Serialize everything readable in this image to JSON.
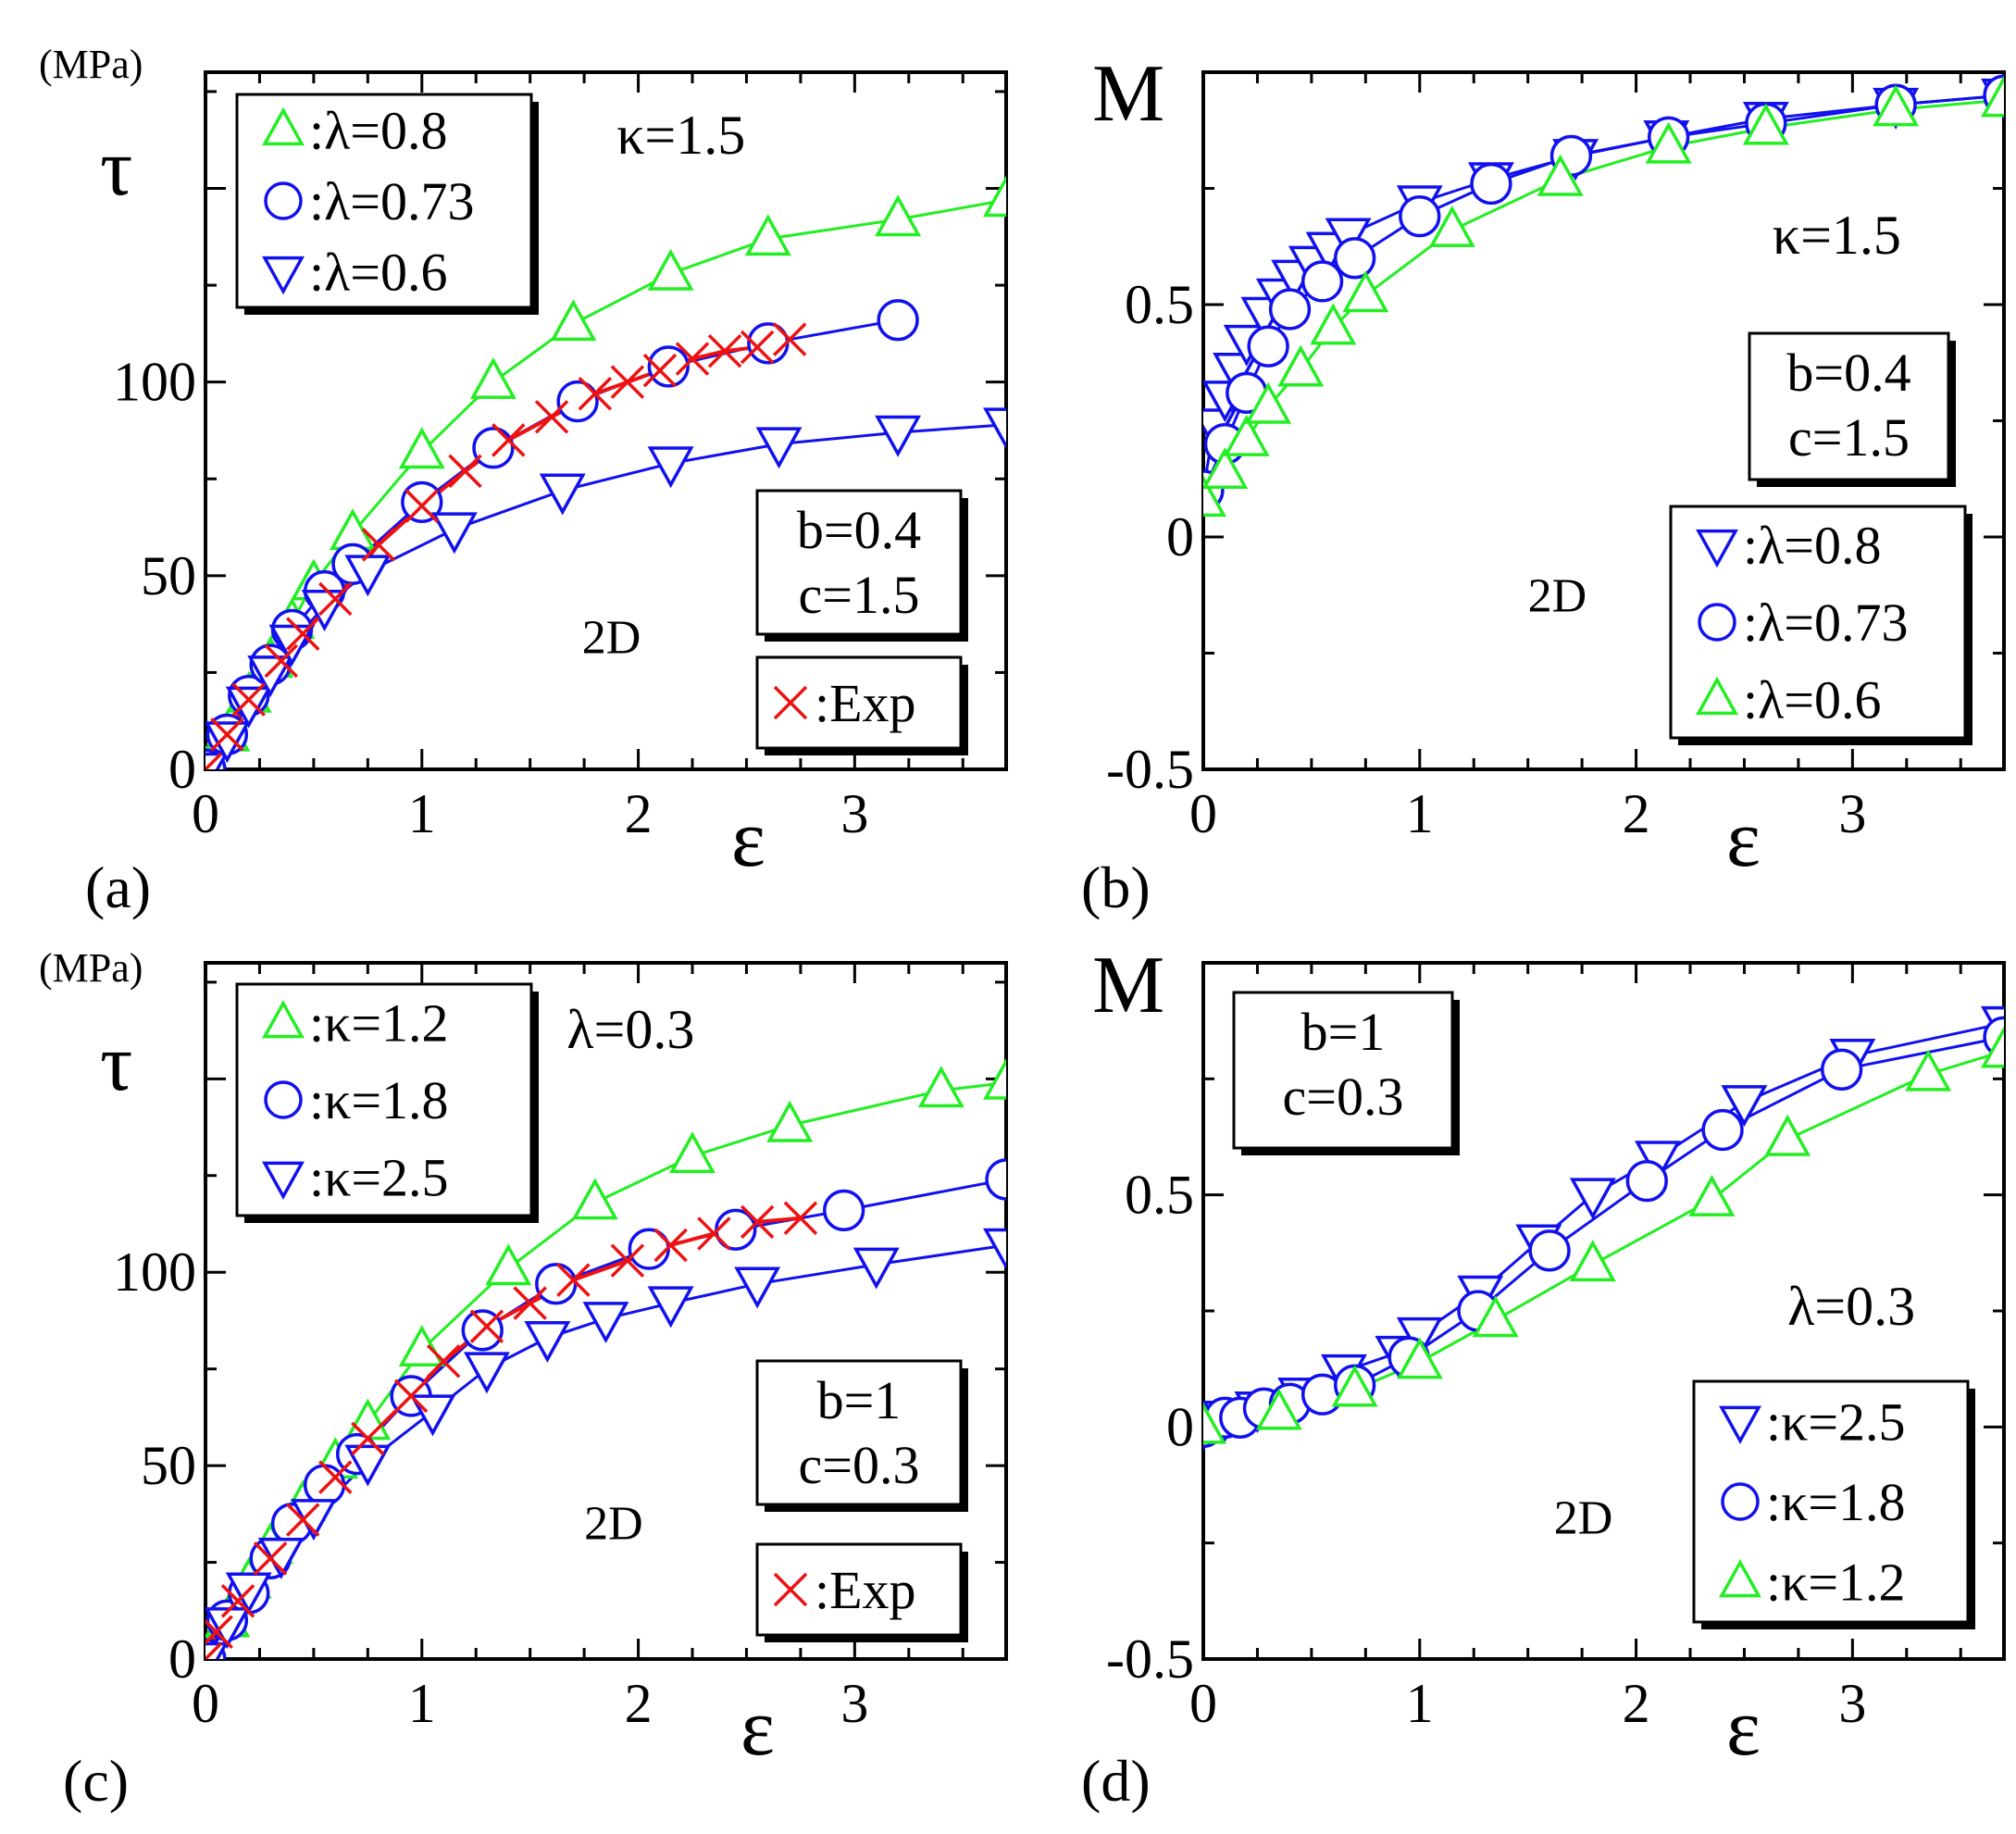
{
  "colors": {
    "green": "#22ee22",
    "blue": "#1111ee",
    "red": "#ee1111",
    "black": "#000000"
  },
  "chart_data": [
    {
      "type": "line",
      "panel_label": "(a)",
      "unit_label": "(MPa)",
      "ylabel": "τ",
      "xlabel": "ε",
      "xlim": [
        0,
        3.7
      ],
      "ylim": [
        0,
        180
      ],
      "xticks": [
        0,
        1,
        2,
        3
      ],
      "xtick_labels": [
        "0",
        "1",
        "2",
        "3"
      ],
      "yticks": [
        0,
        50,
        100
      ],
      "ytick_labels": [
        "0",
        "50",
        "100"
      ],
      "annotations": [
        {
          "text": "κ=1.5",
          "pos": [
            1.9,
            159
          ]
        },
        {
          "text": "2D",
          "pos": [
            1.74,
            30
          ]
        }
      ],
      "param_box": {
        "lines": [
          "b=0.4",
          "c=1.5"
        ],
        "place": "right-middle"
      },
      "legend_place": "top-left",
      "exp_legend": {
        "label": ":Exp",
        "place": "bottom-right"
      },
      "series": [
        {
          "name": ":λ=0.8",
          "marker": "triangle-up",
          "color": "green",
          "x": [
            0,
            0.1,
            0.2,
            0.3,
            0.4,
            0.5,
            0.68,
            1.0,
            1.33,
            1.7,
            2.15,
            2.6,
            3.2,
            3.7
          ],
          "y": [
            0,
            9,
            19,
            28,
            38,
            48,
            61,
            82,
            100,
            115,
            128,
            137,
            142,
            147
          ]
        },
        {
          "name": ":λ=0.73",
          "marker": "circle",
          "color": "blue",
          "x": [
            0,
            0.1,
            0.2,
            0.3,
            0.4,
            0.55,
            0.68,
            1.0,
            1.33,
            1.72,
            2.14,
            2.6,
            3.2
          ],
          "y": [
            0,
            9,
            19,
            27,
            36,
            46,
            53,
            69,
            83,
            95,
            104,
            110,
            116
          ]
        },
        {
          "name": ":λ=0.6",
          "marker": "triangle-down",
          "color": "blue",
          "x": [
            0,
            0.1,
            0.2,
            0.3,
            0.4,
            0.55,
            0.75,
            1.15,
            1.65,
            2.15,
            2.65,
            3.2,
            3.7
          ],
          "y": [
            0,
            8,
            17,
            25,
            33,
            42,
            51,
            62,
            72,
            79,
            84,
            87,
            89
          ]
        },
        {
          "name": ":Exp",
          "marker": "x",
          "color": "red",
          "legend": false,
          "x": [
            0,
            0.1,
            0.2,
            0.35,
            0.45,
            0.6,
            0.8,
            1.0,
            1.2,
            1.4,
            1.6,
            1.8,
            1.95,
            2.1,
            2.25,
            2.4,
            2.55,
            2.7
          ],
          "y": [
            0,
            9,
            18,
            28,
            35,
            44,
            58,
            68,
            77,
            85,
            91,
            97,
            100,
            103,
            106,
            108,
            109,
            111
          ]
        }
      ]
    },
    {
      "type": "line",
      "panel_label": "(b)",
      "ylabel": "M",
      "xlabel": "ε",
      "xlim": [
        0,
        3.7
      ],
      "ylim": [
        -0.5,
        1.0
      ],
      "xticks": [
        0,
        1,
        2,
        3
      ],
      "xtick_labels": [
        "0",
        "1",
        "2",
        "3"
      ],
      "yticks": [
        0,
        0.5,
        -0.5
      ],
      "ytick_labels": [
        "0",
        "0.5",
        "-0.5"
      ],
      "annotations": [
        {
          "text": "κ=1.5",
          "pos": [
            2.63,
            0.61
          ]
        },
        {
          "text": "2D",
          "pos": [
            1.5,
            -0.16
          ]
        }
      ],
      "param_box": {
        "lines": [
          "b=0.4",
          "c=1.5"
        ],
        "place": "right-middle"
      },
      "legend_place": "bottom-right",
      "series": [
        {
          "name": ":λ=0.8",
          "marker": "triangle-down",
          "color": "blue",
          "x": [
            0,
            0.05,
            0.1,
            0.15,
            0.2,
            0.28,
            0.35,
            0.42,
            0.5,
            0.58,
            0.67,
            1.0,
            1.33,
            1.72,
            2.14,
            2.6,
            3.2,
            3.7
          ],
          "y": [
            0.1,
            0.24,
            0.3,
            0.36,
            0.42,
            0.48,
            0.52,
            0.56,
            0.59,
            0.62,
            0.65,
            0.72,
            0.77,
            0.82,
            0.86,
            0.9,
            0.93,
            0.95
          ]
        },
        {
          "name": ":λ=0.73",
          "marker": "circle",
          "color": "blue",
          "x": [
            0,
            0.1,
            0.2,
            0.3,
            0.4,
            0.55,
            0.7,
            1.0,
            1.33,
            1.7,
            2.15,
            2.6,
            3.2,
            3.7
          ],
          "y": [
            0.1,
            0.2,
            0.31,
            0.41,
            0.49,
            0.55,
            0.6,
            0.69,
            0.76,
            0.82,
            0.86,
            0.89,
            0.93,
            0.95
          ]
        },
        {
          "name": ":λ=0.6",
          "marker": "triangle-up",
          "color": "green",
          "x": [
            0,
            0.1,
            0.2,
            0.3,
            0.45,
            0.6,
            0.75,
            1.15,
            1.65,
            2.15,
            2.6,
            3.2,
            3.7
          ],
          "y": [
            0.08,
            0.14,
            0.21,
            0.28,
            0.36,
            0.45,
            0.52,
            0.66,
            0.77,
            0.84,
            0.88,
            0.92,
            0.94
          ]
        }
      ]
    },
    {
      "type": "line",
      "panel_label": "(c)",
      "unit_label": "(MPa)",
      "ylabel": "τ",
      "xlabel": "ε",
      "xlim": [
        0,
        3.7
      ],
      "ylim": [
        0,
        180
      ],
      "xticks": [
        0,
        1,
        2,
        3
      ],
      "xtick_labels": [
        "0",
        "1",
        "2",
        "3"
      ],
      "yticks": [
        0,
        50,
        100
      ],
      "ytick_labels": [
        "0",
        "50",
        "100"
      ],
      "annotations": [
        {
          "text": "λ=0.3",
          "pos": [
            1.67,
            158
          ]
        },
        {
          "text": "2D",
          "pos": [
            1.75,
            31
          ]
        }
      ],
      "param_box": {
        "lines": [
          "b=1",
          "c=0.3"
        ],
        "place": "right-middle"
      },
      "legend_place": "top-left",
      "exp_legend": {
        "label": ":Exp",
        "place": "bottom-right"
      },
      "series": [
        {
          "name": ":κ=1.2",
          "marker": "triangle-up",
          "color": "green",
          "x": [
            0,
            0.1,
            0.2,
            0.3,
            0.45,
            0.6,
            0.75,
            1.0,
            1.4,
            1.8,
            2.25,
            2.7,
            3.4,
            3.7
          ],
          "y": [
            0,
            10,
            20,
            29,
            40,
            51,
            61,
            80,
            101,
            118,
            130,
            138,
            147,
            149
          ]
        },
        {
          "name": ":κ=1.8",
          "marker": "circle",
          "color": "blue",
          "x": [
            0,
            0.1,
            0.2,
            0.3,
            0.4,
            0.55,
            0.7,
            0.95,
            1.28,
            1.62,
            2.05,
            2.45,
            2.95,
            3.7
          ],
          "y": [
            0,
            10,
            17,
            26,
            35,
            45,
            53,
            68,
            85,
            97,
            106,
            111,
            116,
            124
          ]
        },
        {
          "name": ":κ=2.5",
          "marker": "triangle-down",
          "color": "blue",
          "x": [
            0,
            0.1,
            0.2,
            0.35,
            0.5,
            0.75,
            1.05,
            1.3,
            1.58,
            1.85,
            2.15,
            2.55,
            3.1,
            3.7
          ],
          "y": [
            0,
            9,
            18,
            27,
            37,
            51,
            64,
            75,
            83,
            88,
            92,
            97,
            102,
            107
          ]
        },
        {
          "name": ":Exp",
          "marker": "x",
          "color": "red",
          "legend": false,
          "x": [
            0,
            0.05,
            0.15,
            0.3,
            0.45,
            0.6,
            0.75,
            0.95,
            1.1,
            1.3,
            1.5,
            1.7,
            1.95,
            2.15,
            2.35,
            2.55,
            2.75
          ],
          "y": [
            0,
            7,
            15,
            26,
            36,
            47,
            57,
            68,
            77,
            86,
            92,
            98,
            103,
            107,
            110,
            113,
            114
          ]
        }
      ]
    },
    {
      "type": "line",
      "panel_label": "(d)",
      "ylabel": "M",
      "xlabel": "ε",
      "xlim": [
        0,
        3.7
      ],
      "ylim": [
        -0.5,
        1.0
      ],
      "xticks": [
        0,
        1,
        2,
        3
      ],
      "xtick_labels": [
        "0",
        "1",
        "2",
        "3"
      ],
      "yticks": [
        0,
        0.5,
        -0.5
      ],
      "ytick_labels": [
        "0",
        "0.5",
        "-0.5"
      ],
      "annotations": [
        {
          "text": "λ=0.3",
          "pos": [
            2.7,
            0.22
          ]
        },
        {
          "text": "2D",
          "pos": [
            1.62,
            -0.23
          ]
        }
      ],
      "param_box": {
        "lines": [
          "b=1",
          "c=0.3"
        ],
        "place": "top-left"
      },
      "legend_place": "bottom-right",
      "series": [
        {
          "name": ":κ=2.5",
          "marker": "triangle-down",
          "color": "blue",
          "x": [
            0,
            0.1,
            0.25,
            0.45,
            0.65,
            0.9,
            1.0,
            1.28,
            1.55,
            1.8,
            2.1,
            2.5,
            3.0,
            3.7
          ],
          "y": [
            0.0,
            0.02,
            0.04,
            0.07,
            0.12,
            0.16,
            0.2,
            0.29,
            0.4,
            0.5,
            0.58,
            0.7,
            0.8,
            0.87
          ]
        },
        {
          "name": ":κ=1.8",
          "marker": "circle",
          "color": "blue",
          "x": [
            0,
            0.1,
            0.17,
            0.28,
            0.4,
            0.55,
            0.7,
            0.95,
            1.27,
            1.6,
            2.05,
            2.4,
            2.95,
            3.7
          ],
          "y": [
            0.0,
            0.02,
            0.02,
            0.04,
            0.05,
            0.07,
            0.09,
            0.15,
            0.25,
            0.38,
            0.53,
            0.64,
            0.77,
            0.84
          ]
        },
        {
          "name": ":κ=1.2",
          "marker": "triangle-up",
          "color": "green",
          "x": [
            0,
            0.35,
            0.7,
            1.0,
            1.35,
            1.8,
            2.35,
            2.7,
            3.35,
            3.7
          ],
          "y": [
            0.0,
            0.03,
            0.08,
            0.14,
            0.23,
            0.35,
            0.49,
            0.62,
            0.76,
            0.81
          ]
        }
      ]
    }
  ]
}
